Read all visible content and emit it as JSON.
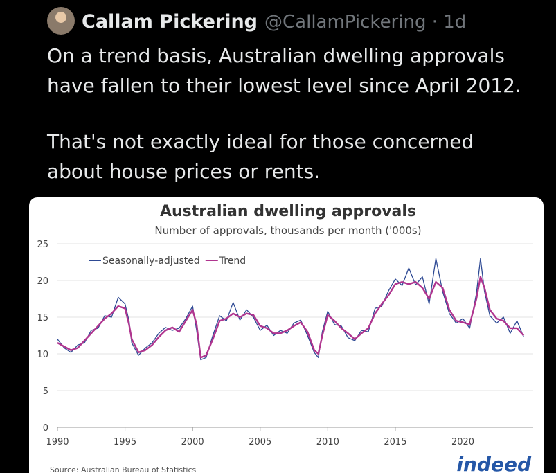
{
  "tweet": {
    "name": "Callam Pickering",
    "handle": "@CallamPickering · 1d",
    "paragraphs": [
      [
        "On a trend basis, Australian dwelling approvals",
        "have fallen to their lowest level since April 2012."
      ],
      [
        "That's not exactly ideal for those concerned",
        "about house prices or rents."
      ]
    ]
  },
  "chart_data": {
    "type": "line",
    "title": "Australian dwelling approvals",
    "subtitle": "Number of approvals, thousands per month ('000s)",
    "source": "Source: Australian Bureau of Statistics",
    "logo": "indeed",
    "x": [
      1990,
      1990.5,
      1991,
      1991.5,
      1992,
      1992.5,
      1993,
      1993.5,
      1994,
      1994.5,
      1995,
      1995.3,
      1995.5,
      1996,
      1996.5,
      1997,
      1997.5,
      1998,
      1998.5,
      1999,
      1999.5,
      2000,
      2000.3,
      2000.6,
      2001,
      2001.5,
      2002,
      2002.5,
      2003,
      2003.5,
      2004,
      2004.5,
      2005,
      2005.5,
      2006,
      2006.5,
      2007,
      2007.5,
      2008,
      2008.5,
      2009,
      2009.3,
      2009.6,
      2010,
      2010.5,
      2011,
      2011.5,
      2012,
      2012.5,
      2013,
      2013.5,
      2014,
      2014.5,
      2015,
      2015.5,
      2016,
      2016.5,
      2017,
      2017.5,
      2018,
      2018.5,
      2019,
      2019.5,
      2020,
      2020.5,
      2021,
      2021.3,
      2021.6,
      2022,
      2022.5,
      2023,
      2023.5,
      2024,
      2024.5
    ],
    "series": [
      {
        "name": "Seasonally-adjusted",
        "color": "#2e4a94",
        "values": [
          12,
          10.8,
          10.2,
          11.2,
          11.5,
          13.2,
          13.5,
          15.2,
          15,
          17.7,
          16.8,
          14.5,
          11.5,
          9.8,
          10.8,
          11.5,
          12.8,
          13.6,
          13.2,
          13.5,
          14.8,
          16.5,
          13.2,
          9.2,
          9.5,
          12.5,
          15.2,
          14.5,
          17,
          14.6,
          16,
          15,
          13.2,
          13.9,
          12.5,
          13.2,
          12.8,
          14.2,
          14.6,
          12.5,
          10.2,
          9.5,
          13,
          15.8,
          14,
          13.8,
          12.2,
          11.8,
          13.2,
          13,
          16.2,
          16.5,
          18.6,
          20.2,
          19.3,
          21.7,
          19.4,
          20.5,
          16.8,
          23,
          18.5,
          15.5,
          14.2,
          14.8,
          13.5,
          18.2,
          23,
          18.5,
          15.2,
          14.2,
          15,
          12.8,
          14.5,
          12.3
        ]
      },
      {
        "name": "Trend",
        "color": "#b0358f",
        "values": [
          11.5,
          11.0,
          10.5,
          10.8,
          11.8,
          12.8,
          13.8,
          14.8,
          15.5,
          16.5,
          16.2,
          14,
          12,
          10.2,
          10.5,
          11.2,
          12.3,
          13.2,
          13.6,
          13,
          14.5,
          16,
          14,
          9.5,
          9.8,
          12,
          14.5,
          14.8,
          15.5,
          15,
          15.5,
          15.3,
          13.8,
          13.5,
          12.8,
          12.8,
          13.2,
          13.8,
          14.3,
          13,
          10.5,
          10.0,
          12.5,
          15.3,
          14.5,
          13.5,
          12.8,
          12.0,
          12.8,
          13.5,
          15.5,
          16.8,
          18,
          19.5,
          19.8,
          19.5,
          19.8,
          19,
          17.5,
          19.8,
          19,
          16,
          14.5,
          14.3,
          14,
          17.5,
          20.5,
          19,
          16,
          14.8,
          14.5,
          13.5,
          13.5,
          12.5
        ]
      }
    ],
    "xlim": [
      1990,
      2025.2
    ],
    "xticks": [
      1990,
      1995,
      2000,
      2005,
      2010,
      2015,
      2020
    ],
    "ylim": [
      0,
      25
    ],
    "yticks": [
      0,
      5,
      10,
      15,
      20,
      25
    ],
    "grid": true
  }
}
